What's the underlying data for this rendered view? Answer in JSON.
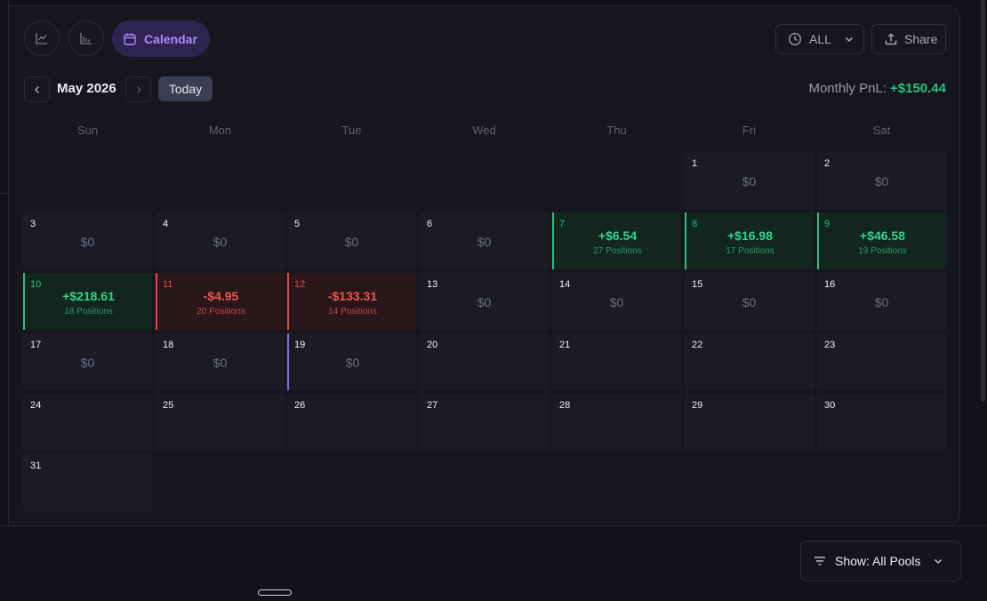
{
  "toolbar": {
    "tabs": [
      {
        "icon": "line-chart-icon"
      },
      {
        "icon": "bar-chart-icon"
      },
      {
        "icon": "calendar-icon",
        "label": "Calendar"
      }
    ],
    "timeframe": {
      "icon": "clock-icon",
      "label": "ALL",
      "chevron": "chevron-down-icon"
    },
    "share": {
      "icon": "upload-icon",
      "label": "Share"
    }
  },
  "calendar": {
    "month_label": "May 2026",
    "today_label": "Today",
    "monthly_label": "Monthly PnL:",
    "monthly_value": "+$150.44",
    "weekdays": [
      "Sun",
      "Mon",
      "Tue",
      "Wed",
      "Thu",
      "Fri",
      "Sat"
    ],
    "first_weekday_index": 5,
    "days_in_month": 31,
    "today_day": 19,
    "days": [
      {
        "d": "1",
        "pnl": "$0"
      },
      {
        "d": "2",
        "pnl": "$0"
      },
      {
        "d": "3",
        "pnl": "$0"
      },
      {
        "d": "4",
        "pnl": "$0"
      },
      {
        "d": "5",
        "pnl": "$0"
      },
      {
        "d": "6",
        "pnl": "$0"
      },
      {
        "d": "7",
        "pnl": "+$6.54",
        "positions": "27 Positions",
        "status": "pos"
      },
      {
        "d": "8",
        "pnl": "+$16.98",
        "positions": "17 Positions",
        "status": "pos"
      },
      {
        "d": "9",
        "pnl": "+$46.58",
        "positions": "19 Positions",
        "status": "pos"
      },
      {
        "d": "10",
        "pnl": "+$218.61",
        "positions": "18 Positions",
        "status": "pos"
      },
      {
        "d": "11",
        "pnl": "-$4.95",
        "positions": "20 Positions",
        "status": "neg"
      },
      {
        "d": "12",
        "pnl": "-$133.31",
        "positions": "14 Positions",
        "status": "neg"
      },
      {
        "d": "13",
        "pnl": "$0"
      },
      {
        "d": "14",
        "pnl": "$0"
      },
      {
        "d": "15",
        "pnl": "$0"
      },
      {
        "d": "16",
        "pnl": "$0"
      },
      {
        "d": "17",
        "pnl": "$0"
      },
      {
        "d": "18",
        "pnl": "$0"
      },
      {
        "d": "19",
        "pnl": "$0"
      },
      {
        "d": "20"
      },
      {
        "d": "21"
      },
      {
        "d": "22"
      },
      {
        "d": "23"
      },
      {
        "d": "24"
      },
      {
        "d": "25"
      },
      {
        "d": "26"
      },
      {
        "d": "27"
      },
      {
        "d": "28"
      },
      {
        "d": "29"
      },
      {
        "d": "30"
      },
      {
        "d": "31"
      }
    ]
  },
  "filter": {
    "icon": "filter-icon",
    "label": "Show: All Pools",
    "chevron": "chevron-down-icon"
  },
  "colors": {
    "positive": "#22c37a",
    "negative": "#ef4444",
    "accent": "#a78bfa",
    "today": "#7c6cf0"
  }
}
